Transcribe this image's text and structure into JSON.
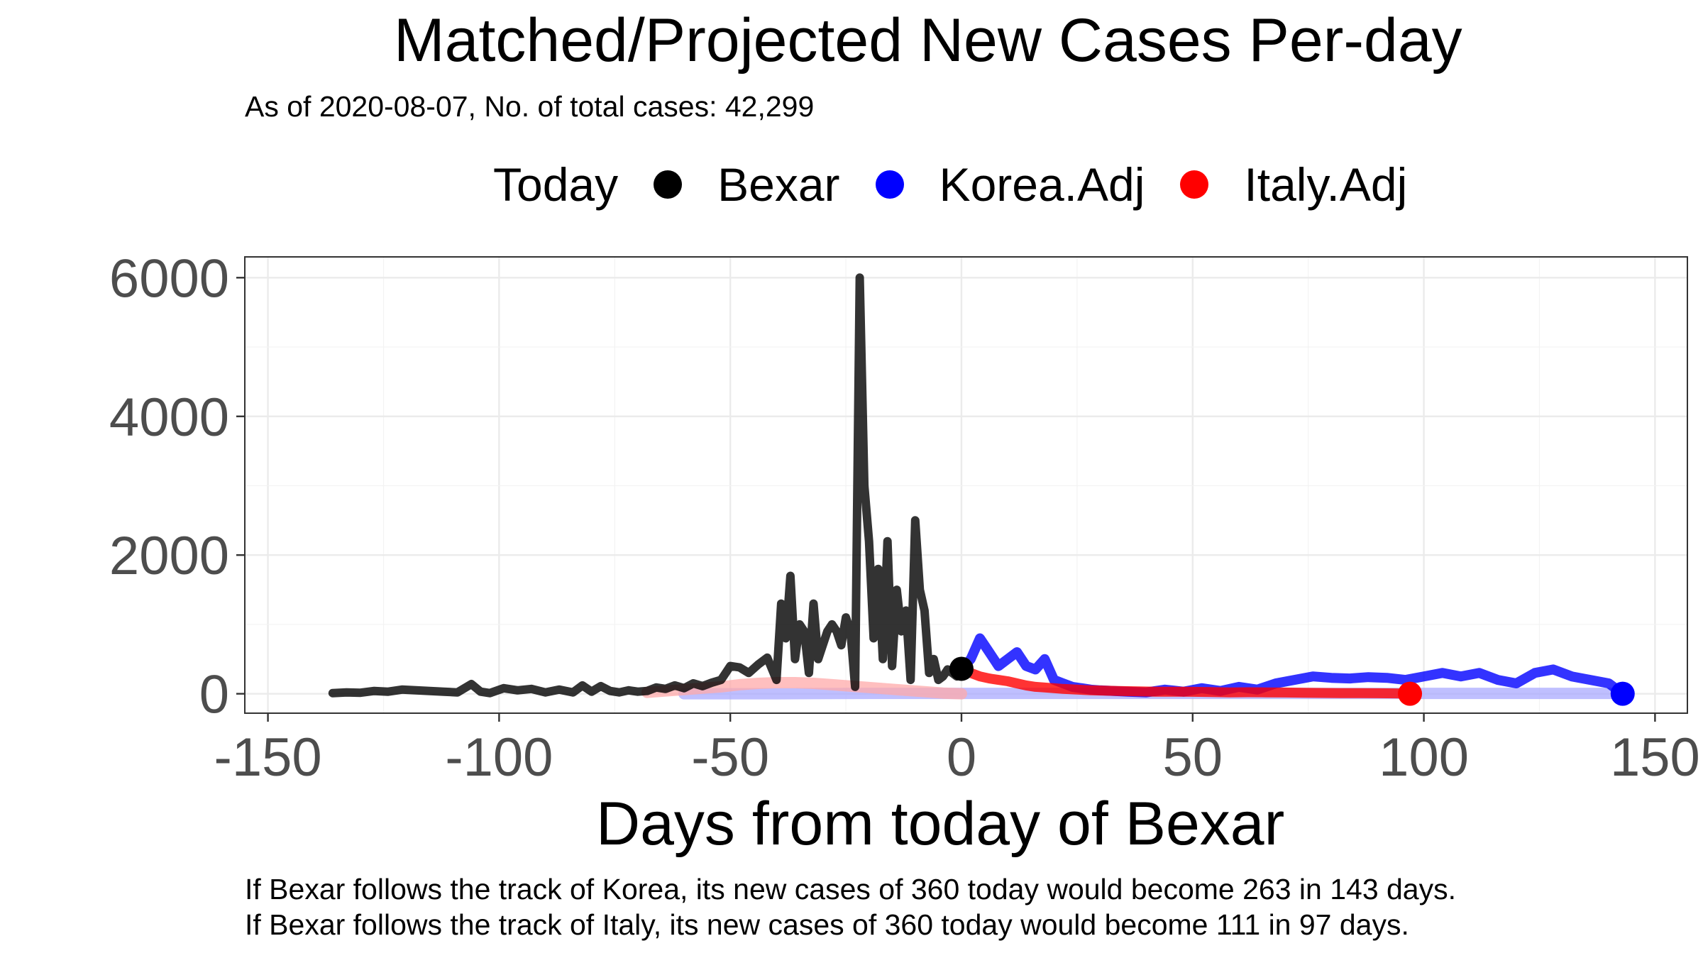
{
  "chart_data": {
    "type": "line",
    "title": "Matched/Projected New Cases Per-day",
    "subtitle": "As of 2020-08-07, No. of total cases: 42,299",
    "xlabel": "Days from today of Bexar",
    "ylabel": "",
    "xlim": [
      -155,
      157
    ],
    "ylim": [
      -280,
      6300
    ],
    "x_ticks": [
      -150,
      -100,
      -50,
      0,
      50,
      100,
      150
    ],
    "x_tick_labels": [
      "-150",
      "-100",
      "-50",
      "0",
      "50",
      "100",
      "150"
    ],
    "y_ticks": [
      0,
      2000,
      4000,
      6000
    ],
    "y_tick_labels": [
      "0",
      "2000",
      "4000",
      "6000"
    ],
    "grid": true,
    "legend": {
      "title": "Today",
      "position": "top"
    },
    "series": [
      {
        "name": "Bexar",
        "color": "#000000",
        "x": [
          -136,
          -133,
          -130,
          -127,
          -124,
          -121,
          -118,
          -115,
          -112,
          -109,
          -106,
          -104,
          -102,
          -99,
          -96,
          -93,
          -90,
          -87,
          -84,
          -82,
          -80,
          -78,
          -76,
          -74,
          -72,
          -70,
          -68,
          -66,
          -64,
          -62,
          -60,
          -58,
          -56,
          -54,
          -52,
          -50,
          -48,
          -46,
          -44,
          -42,
          -40,
          -39,
          -38,
          -37,
          -36,
          -35,
          -34,
          -33,
          -32,
          -31,
          -30,
          -29,
          -28,
          -27,
          -26,
          -25,
          -24,
          -23,
          -22,
          -21,
          -20,
          -19,
          -18,
          -17,
          -16,
          -15,
          -14,
          -13,
          -12,
          -11,
          -10,
          -9,
          -8,
          -7,
          -6,
          -5,
          -4,
          -3,
          -2,
          -1,
          0
        ],
        "values": [
          10,
          20,
          15,
          40,
          30,
          60,
          50,
          40,
          30,
          20,
          140,
          30,
          10,
          80,
          50,
          70,
          20,
          60,
          20,
          120,
          30,
          110,
          40,
          20,
          50,
          30,
          40,
          90,
          70,
          120,
          80,
          150,
          110,
          160,
          200,
          400,
          380,
          300,
          420,
          520,
          200,
          1300,
          800,
          1700,
          500,
          1000,
          900,
          300,
          1300,
          500,
          700,
          900,
          1000,
          900,
          700,
          1100,
          900,
          100,
          6000,
          3000,
          2200,
          800,
          1800,
          500,
          2200,
          400,
          1500,
          900,
          1200,
          200,
          2500,
          1500,
          1200,
          300,
          500,
          200,
          250,
          350,
          300,
          250,
          360
        ]
      },
      {
        "name": "Korea.Adj",
        "color": "#0000ff",
        "x": [
          0,
          2,
          4,
          6,
          8,
          10,
          12,
          14,
          16,
          18,
          20,
          22,
          24,
          26,
          28,
          30,
          33,
          36,
          40,
          44,
          48,
          52,
          56,
          60,
          64,
          68,
          72,
          76,
          80,
          84,
          88,
          92,
          96,
          100,
          104,
          108,
          112,
          116,
          120,
          124,
          128,
          132,
          136,
          140,
          143
        ],
        "values": [
          360,
          500,
          800,
          600,
          400,
          500,
          600,
          400,
          350,
          500,
          200,
          150,
          100,
          80,
          60,
          50,
          40,
          30,
          20,
          60,
          30,
          80,
          40,
          100,
          60,
          150,
          200,
          250,
          230,
          220,
          240,
          230,
          200,
          250,
          300,
          250,
          300,
          200,
          150,
          300,
          350,
          250,
          200,
          150,
          0
        ]
      },
      {
        "name": "Italy.Adj",
        "color": "#ff0000",
        "x": [
          0,
          2,
          4,
          6,
          8,
          10,
          12,
          14,
          16,
          18,
          20,
          22,
          25,
          28,
          31,
          34,
          38,
          42,
          46,
          50,
          54,
          58,
          62,
          66,
          70,
          74,
          78,
          82,
          86,
          90,
          94,
          97
        ],
        "values": [
          360,
          300,
          250,
          220,
          200,
          180,
          150,
          120,
          100,
          90,
          80,
          70,
          60,
          50,
          45,
          40,
          35,
          30,
          30,
          28,
          25,
          20,
          22,
          20,
          18,
          15,
          12,
          10,
          10,
          8,
          5,
          0
        ]
      },
      {
        "name": "Italy.Adj (matched history)",
        "color": "#ffaaaa",
        "x": [
          -68,
          -64,
          -60,
          -56,
          -52,
          -48,
          -44,
          -40,
          -36,
          -32,
          -28,
          -24,
          -20,
          -16,
          -12,
          -8,
          -4,
          0
        ],
        "values": [
          20,
          40,
          60,
          80,
          100,
          130,
          150,
          160,
          160,
          150,
          130,
          110,
          90,
          70,
          50,
          30,
          10,
          0
        ]
      },
      {
        "name": "Korea.Adj (matched history)",
        "color": "#aaaaff",
        "x": [
          -60,
          -40,
          -20,
          0,
          20,
          40,
          60,
          80,
          100,
          120,
          143
        ],
        "values": [
          0,
          0,
          5,
          5,
          5,
          5,
          5,
          5,
          5,
          5,
          5
        ]
      }
    ],
    "today_points": [
      {
        "name": "Bexar",
        "x": 0,
        "y": 360,
        "color": "#000000"
      },
      {
        "name": "Korea.Adj",
        "x": 143,
        "y": 0,
        "color": "#0000ff"
      },
      {
        "name": "Italy.Adj",
        "x": 97,
        "y": 0,
        "color": "#ff0000"
      }
    ],
    "captions": [
      "If Bexar follows the track of Korea, its new cases of 360 today would become 263 in 143 days.",
      "If Bexar follows the track of Italy, its new cases of 360 today would become 111 in 97 days."
    ],
    "legend_entries": [
      {
        "label": "Bexar",
        "color": "#000000"
      },
      {
        "label": "Korea.Adj",
        "color": "#0000ff"
      },
      {
        "label": "Italy.Adj",
        "color": "#ff0000"
      }
    ]
  }
}
